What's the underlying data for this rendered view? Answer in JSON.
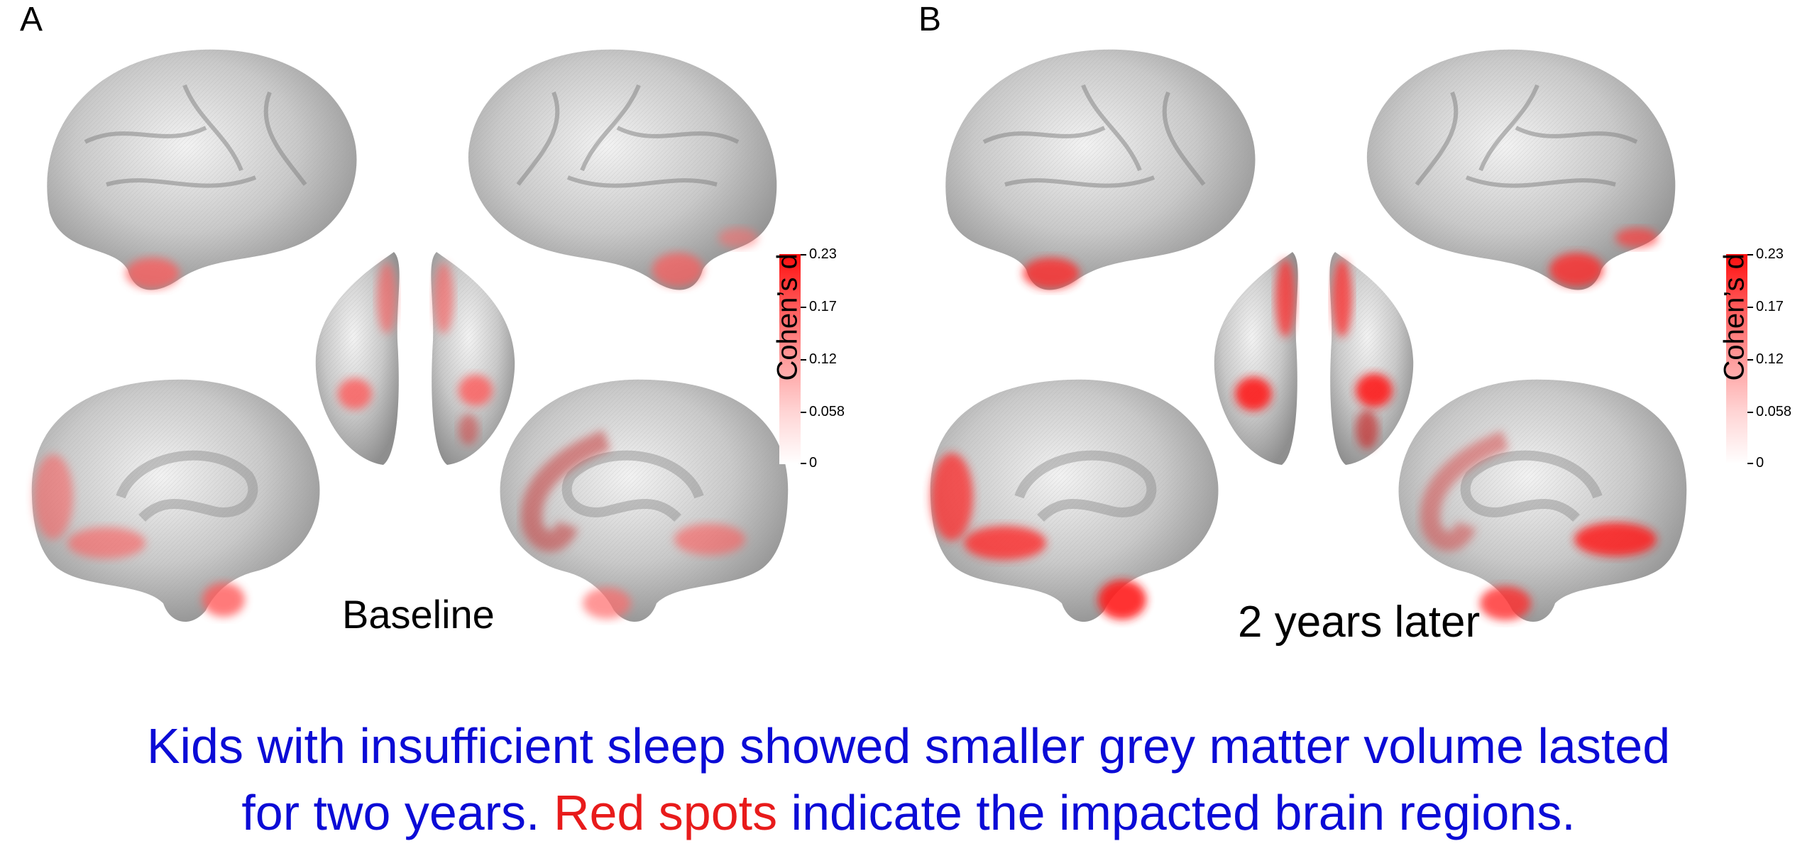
{
  "panels": [
    {
      "letter": "A",
      "condition": "Baseline",
      "colorbar": {
        "title": "Cohen’s d",
        "ticks": [
          "0.23",
          "0.17",
          "0.12",
          "0.058",
          "0"
        ],
        "min": 0,
        "max": 0.23
      }
    },
    {
      "letter": "B",
      "condition": "2 years later",
      "colorbar": {
        "title": "Cohen’s d",
        "ticks": [
          "0.23",
          "0.17",
          "0.12",
          "0.058",
          "0"
        ],
        "min": 0,
        "max": 0.23
      }
    }
  ],
  "caption": {
    "line1": "Kids with insufficient sleep showed smaller grey matter volume lasted",
    "line2_part1": "for two years. ",
    "line2_highlight": "Red spots",
    "line2_part2": " indicate the impacted brain regions."
  },
  "colors": {
    "caption_text": "#0b0bd6",
    "caption_highlight": "#e81b1b",
    "effect_max": "#ff0d0d",
    "cortex": "#b8b8b8"
  }
}
